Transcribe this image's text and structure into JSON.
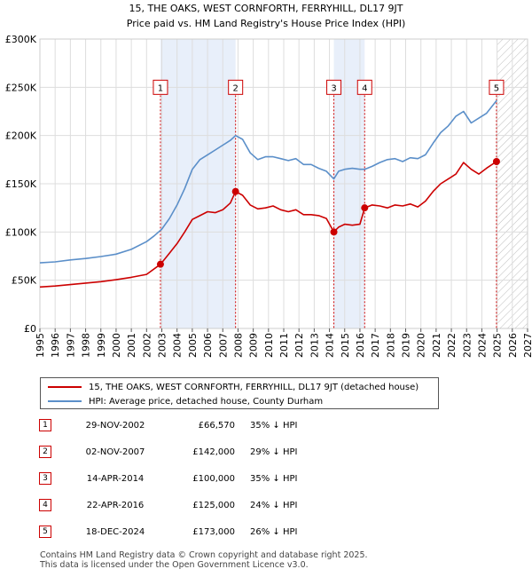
{
  "chart_data": {
    "type": "line",
    "title": "15, THE OAKS, WEST CORNFORTH, FERRYHILL, DL17 9JT",
    "subtitle": "Price paid vs. HM Land Registry's House Price Index (HPI)",
    "xlabel": "",
    "ylabel": "",
    "xlim": [
      1995,
      2027
    ],
    "ylim": [
      0,
      300000
    ],
    "y_ticks": [
      0,
      50000,
      100000,
      150000,
      200000,
      250000,
      300000
    ],
    "y_tick_labels": [
      "£0",
      "£50K",
      "£100K",
      "£150K",
      "£200K",
      "£250K",
      "£300K"
    ],
    "x_ticks": [
      1995,
      1996,
      1997,
      1998,
      1999,
      2000,
      2001,
      2002,
      2003,
      2004,
      2005,
      2006,
      2007,
      2008,
      2009,
      2010,
      2011,
      2012,
      2013,
      2014,
      2015,
      2016,
      2017,
      2018,
      2019,
      2020,
      2021,
      2022,
      2023,
      2024,
      2025,
      2026,
      2027
    ],
    "x_tick_labels": [
      "1995",
      "1996",
      "1997",
      "1998",
      "1999",
      "2000",
      "2001",
      "2002",
      "2003",
      "2004",
      "2005",
      "2006",
      "2007",
      "2008",
      "2009",
      "2010",
      "2011",
      "2012",
      "2013",
      "2014",
      "2015",
      "2016",
      "2017",
      "2018",
      "2019",
      "2020",
      "2021",
      "2022",
      "2023",
      "2024",
      "2025",
      "2026",
      "2027"
    ],
    "grid": true,
    "future_hatch_start": 2025.0,
    "shaded_spans": [
      [
        2002.91,
        2007.84
      ],
      [
        2014.29,
        2016.31
      ]
    ],
    "series": [
      {
        "name": "15, THE OAKS, WEST CORNFORTH, FERRYHILL, DL17 9JT (detached house)",
        "color": "#cc0000",
        "x": [
          1995.0,
          1996.0,
          1997.0,
          1998.0,
          1999.0,
          2000.0,
          2001.0,
          2002.0,
          2002.91,
          2003.5,
          2004.0,
          2004.5,
          2005.0,
          2005.5,
          2006.0,
          2006.5,
          2007.0,
          2007.5,
          2007.84,
          2008.3,
          2008.8,
          2009.3,
          2009.8,
          2010.3,
          2010.8,
          2011.3,
          2011.8,
          2012.3,
          2012.8,
          2013.3,
          2013.8,
          2014.29,
          2014.6,
          2015.0,
          2015.5,
          2016.0,
          2016.31,
          2016.8,
          2017.3,
          2017.8,
          2018.3,
          2018.8,
          2019.3,
          2019.8,
          2020.3,
          2020.8,
          2021.3,
          2021.8,
          2022.3,
          2022.8,
          2023.3,
          2023.8,
          2024.3,
          2024.96,
          2025.0
        ],
        "values": [
          43000,
          44000,
          45500,
          47000,
          48500,
          50500,
          53000,
          56000,
          66570,
          78000,
          88000,
          100000,
          113000,
          117000,
          121000,
          120000,
          123000,
          130000,
          142000,
          138000,
          128000,
          124000,
          125000,
          127000,
          123000,
          121000,
          123000,
          118000,
          118000,
          117000,
          114000,
          100000,
          105000,
          108000,
          107000,
          108000,
          125000,
          128000,
          127000,
          125000,
          128000,
          127000,
          129000,
          126000,
          132000,
          142000,
          150000,
          155000,
          160000,
          172000,
          165000,
          160000,
          166000,
          173000,
          173000
        ]
      },
      {
        "name": "HPI: Average price, detached house, County Durham",
        "color": "#5b8fc9",
        "x": [
          1995.0,
          1996.0,
          1997.0,
          1998.0,
          1999.0,
          2000.0,
          2001.0,
          2002.0,
          2002.5,
          2003.0,
          2003.5,
          2004.0,
          2004.5,
          2005.0,
          2005.5,
          2006.0,
          2006.5,
          2007.0,
          2007.5,
          2007.84,
          2008.3,
          2008.8,
          2009.3,
          2009.8,
          2010.3,
          2010.8,
          2011.3,
          2011.8,
          2012.3,
          2012.8,
          2013.3,
          2013.8,
          2014.29,
          2014.6,
          2015.0,
          2015.5,
          2016.0,
          2016.31,
          2016.8,
          2017.3,
          2017.8,
          2018.3,
          2018.8,
          2019.3,
          2019.8,
          2020.3,
          2020.8,
          2021.3,
          2021.8,
          2022.3,
          2022.8,
          2023.3,
          2023.8,
          2024.3,
          2024.96,
          2025.0
        ],
        "values": [
          68000,
          69000,
          71000,
          72500,
          74500,
          77000,
          82000,
          90000,
          96000,
          103000,
          114000,
          128000,
          145000,
          165000,
          175000,
          180000,
          185000,
          190000,
          195000,
          200000,
          196000,
          182000,
          175000,
          178000,
          178000,
          176000,
          174000,
          176000,
          170000,
          170000,
          166000,
          163000,
          155000,
          163000,
          165000,
          166000,
          165000,
          165000,
          168000,
          172000,
          175000,
          176000,
          173000,
          177000,
          176000,
          180000,
          192000,
          203000,
          210000,
          220000,
          225000,
          213000,
          218000,
          223000,
          236000,
          236000
        ]
      }
    ],
    "markers": [
      {
        "label": "1",
        "x": 2002.91,
        "y": 66570
      },
      {
        "label": "2",
        "x": 2007.84,
        "y": 142000
      },
      {
        "label": "3",
        "x": 2014.29,
        "y": 100000
      },
      {
        "label": "4",
        "x": 2016.31,
        "y": 125000
      },
      {
        "label": "5",
        "x": 2024.96,
        "y": 173000
      }
    ],
    "marker_box_value": 250000
  },
  "legend": {
    "property_label": "15, THE OAKS, WEST CORNFORTH, FERRYHILL, DL17 9JT (detached house)",
    "hpi_label": "HPI: Average price, detached house, County Durham"
  },
  "transactions": [
    {
      "num": "1",
      "date": "29-NOV-2002",
      "price": "£66,570",
      "hpi": "35% ↓ HPI"
    },
    {
      "num": "2",
      "date": "02-NOV-2007",
      "price": "£142,000",
      "hpi": "29% ↓ HPI"
    },
    {
      "num": "3",
      "date": "14-APR-2014",
      "price": "£100,000",
      "hpi": "35% ↓ HPI"
    },
    {
      "num": "4",
      "date": "22-APR-2016",
      "price": "£125,000",
      "hpi": "24% ↓ HPI"
    },
    {
      "num": "5",
      "date": "18-DEC-2024",
      "price": "£173,000",
      "hpi": "26% ↓ HPI"
    }
  ],
  "footer": {
    "line1": "Contains HM Land Registry data © Crown copyright and database right 2025.",
    "line2": "This data is licensed under the Open Government Licence v3.0."
  }
}
